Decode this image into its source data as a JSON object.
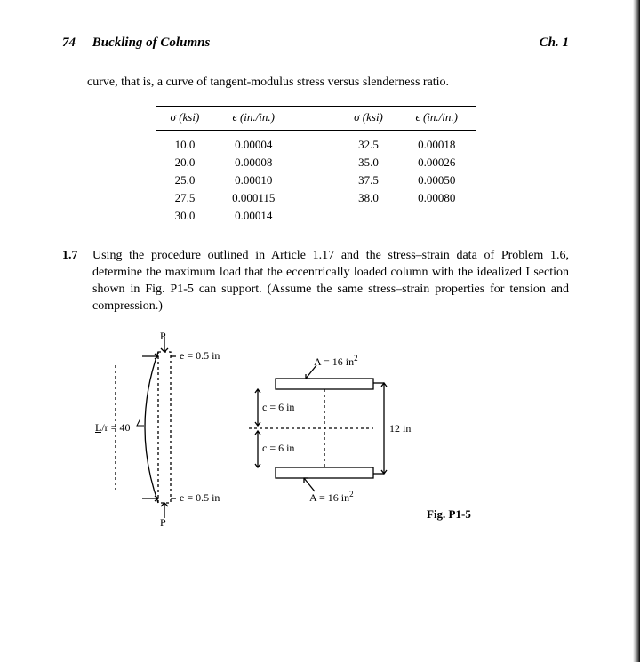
{
  "header": {
    "pgnum": "74",
    "title": "Buckling of Columns",
    "chap": "Ch. 1"
  },
  "intro": "curve, that is, a curve of tangent-modulus stress versus slenderness ratio.",
  "table": {
    "sigma_hdr": "σ (ksi)",
    "eps_hdr": "ϵ (in./in.)",
    "left": [
      [
        "10.0",
        "0.00004"
      ],
      [
        "20.0",
        "0.00008"
      ],
      [
        "25.0",
        "0.00010"
      ],
      [
        "27.5",
        "0.000115"
      ],
      [
        "30.0",
        "0.00014"
      ]
    ],
    "right": [
      [
        "32.5",
        "0.00018"
      ],
      [
        "35.0",
        "0.00026"
      ],
      [
        "37.5",
        "0.00050"
      ],
      [
        "38.0",
        "0.00080"
      ]
    ]
  },
  "problem": {
    "num": "1.7",
    "text": "Using the procedure outlined in Article 1.17 and the stress–strain data of Problem 1.6, determine the maximum load that the eccentrically loaded column with the idealized I section shown in Fig. P1-5 can support. (Assume the same stress–strain properties for tension and compression.)"
  },
  "fig": {
    "caption": "Fig. P1-5",
    "P_top": "P",
    "P_bot": "P",
    "e_top": "e = 0.5 in",
    "e_bot": "e = 0.5 in",
    "Lr": "L/r = 40",
    "c1": "c = 6 in",
    "c2": "c = 6 in",
    "A1": "A = 16 in",
    "A2": "A = 16 in",
    "h": "12 in"
  },
  "style": {
    "font_family": "Times New Roman",
    "text_color": "#000000",
    "background": "#ffffff",
    "line_color": "#000000",
    "dash": "3,3",
    "fontsize": {
      "header": 15,
      "body": 14,
      "table": 13,
      "fig": 12
    }
  }
}
